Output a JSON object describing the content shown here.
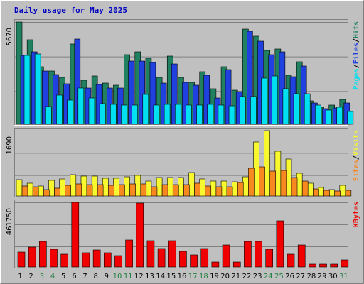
{
  "chart_data": {
    "type": "bar",
    "title": "Daily usage for May 2025",
    "categories": [
      "1",
      "2",
      "3",
      "4",
      "5",
      "6",
      "7",
      "8",
      "9",
      "10",
      "11",
      "12",
      "13",
      "14",
      "15",
      "16",
      "17",
      "18",
      "19",
      "20",
      "21",
      "22",
      "23",
      "24",
      "25",
      "26",
      "27",
      "28",
      "29",
      "30",
      "31"
    ],
    "weekend_days": [
      "3",
      "4",
      "10",
      "11",
      "17",
      "18",
      "24",
      "25",
      "31"
    ],
    "panels": [
      {
        "name": "hits-files-pages",
        "ylabel_parts": [
          "Pages",
          "Files",
          "Hits"
        ],
        "ymax": 5670,
        "ytick_label": "5670",
        "series": [
          {
            "name": "Hits",
            "color": "#208060",
            "values": [
              5670,
              4700,
              3170,
              2970,
              2580,
              4450,
              2460,
              2660,
              2280,
              2180,
              3850,
              4020,
              3660,
              2600,
              3790,
              2580,
              2330,
              2910,
              1950,
              3200,
              1890,
              5270,
              4890,
              4090,
              4160,
              2730,
              3480,
              1300,
              960,
              1050,
              1360
            ]
          },
          {
            "name": "Files",
            "color": "#2040e0",
            "values": [
              3800,
              4000,
              2950,
              2770,
              2250,
              4740,
              2010,
              2210,
              2010,
              2010,
              3520,
              3510,
              3410,
              2270,
              3360,
              2320,
              2150,
              2700,
              1460,
              3050,
              1830,
              5170,
              4610,
              3870,
              4000,
              2620,
              3240,
              1190,
              850,
              920,
              1190
            ]
          },
          {
            "name": "Pages",
            "color": "#00e0f0",
            "values": [
              3800,
              3900,
              980,
              1600,
              1330,
              2020,
              1440,
              1130,
              1090,
              1070,
              1070,
              1650,
              1050,
              1100,
              1110,
              1050,
              1070,
              1100,
              1060,
              1020,
              1550,
              1530,
              2570,
              2690,
              1960,
              1690,
              1680,
              1080,
              780,
              940,
              710
            ]
          }
        ]
      },
      {
        "name": "visits-sites",
        "ylabel_parts": [
          "Sites",
          "Visits"
        ],
        "ymax": 1690,
        "ytick_label": "1690",
        "series": [
          {
            "name": "Visits",
            "color": "#f8f830",
            "values": [
              420,
              330,
              260,
              400,
              440,
              560,
              510,
              520,
              460,
              460,
              500,
              540,
              390,
              480,
              480,
              480,
              600,
              450,
              390,
              380,
              360,
              500,
              1390,
              1690,
              1160,
              960,
              590,
              330,
              220,
              160,
              280
            ]
          },
          {
            "name": "Sites",
            "color": "#f88820",
            "values": [
              260,
              230,
              170,
              210,
              270,
              310,
              300,
              290,
              270,
              290,
              310,
              320,
              230,
              300,
              290,
              290,
              330,
              250,
              230,
              230,
              340,
              710,
              760,
              650,
              670,
              480,
              380,
              190,
              140,
              120,
              140
            ]
          }
        ]
      },
      {
        "name": "kbytes",
        "ylabel_parts": [
          "KBytes"
        ],
        "ymax": 461750,
        "ytick_label": "461750",
        "series": [
          {
            "name": "KBytes",
            "color": "#f00000",
            "values": [
              105000,
              140000,
              182000,
              127000,
              91000,
              460000,
              100000,
              124000,
              100000,
              83000,
              194000,
              455000,
              190000,
              133000,
              189000,
              110000,
              84000,
              130000,
              35000,
              158000,
              35000,
              183000,
              182000,
              128000,
              330000,
              91000,
              156000,
              19000,
              19000,
              19000,
              51000
            ]
          }
        ]
      }
    ]
  }
}
